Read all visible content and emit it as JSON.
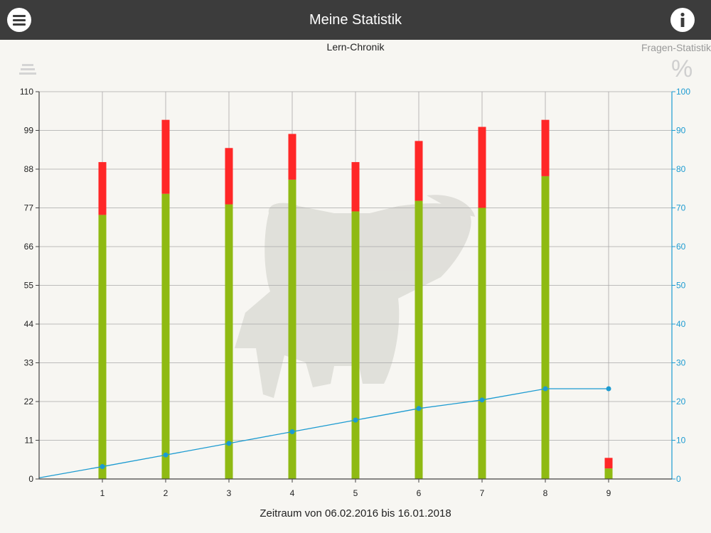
{
  "header": {
    "title": "Meine Statistik",
    "menu_icon": "hamburger-icon",
    "info_icon": "info-icon"
  },
  "tabs": {
    "active": "Lern-Chronik",
    "other": "Fragen-Statistik",
    "list_icon": "list-icon",
    "percent_symbol": "%"
  },
  "caption": "Zeitraum von 06.02.2016 bis 16.01.2018",
  "colors": {
    "correct": "#8fba13",
    "wrong": "#ff2727",
    "line": "#1c9bd1",
    "topbar": "#3c3c3c"
  },
  "chart_data": {
    "type": "bar",
    "stacked": true,
    "categories": [
      "1",
      "2",
      "3",
      "4",
      "5",
      "6",
      "7",
      "8",
      "9"
    ],
    "series": [
      {
        "values": [
          75,
          81,
          78,
          85,
          76,
          79,
          77,
          86,
          3
        ]
      },
      {
        "values": [
          15,
          21,
          16,
          13,
          14,
          17,
          23,
          16,
          3
        ]
      }
    ],
    "line_series": {
      "axis": "right",
      "x": [
        0,
        1,
        2,
        3,
        4,
        5,
        6,
        7,
        8,
        9
      ],
      "values": [
        0.3,
        3.2,
        6.2,
        9.2,
        12.2,
        15.2,
        18.2,
        20.4,
        23.3,
        23.3
      ]
    },
    "y_left": {
      "ylim": [
        0,
        110
      ],
      "ticks": [
        "0",
        "11",
        "22",
        "33",
        "44",
        "55",
        "66",
        "77",
        "88",
        "99",
        "110"
      ]
    },
    "y_right": {
      "ylim": [
        0,
        100
      ],
      "ticks": [
        "0",
        "10",
        "20",
        "30",
        "40",
        "50",
        "60",
        "70",
        "80",
        "90",
        "100"
      ]
    },
    "grid": true,
    "xlabel": "Zeitraum von 06.02.2016 bis 16.01.2018"
  }
}
